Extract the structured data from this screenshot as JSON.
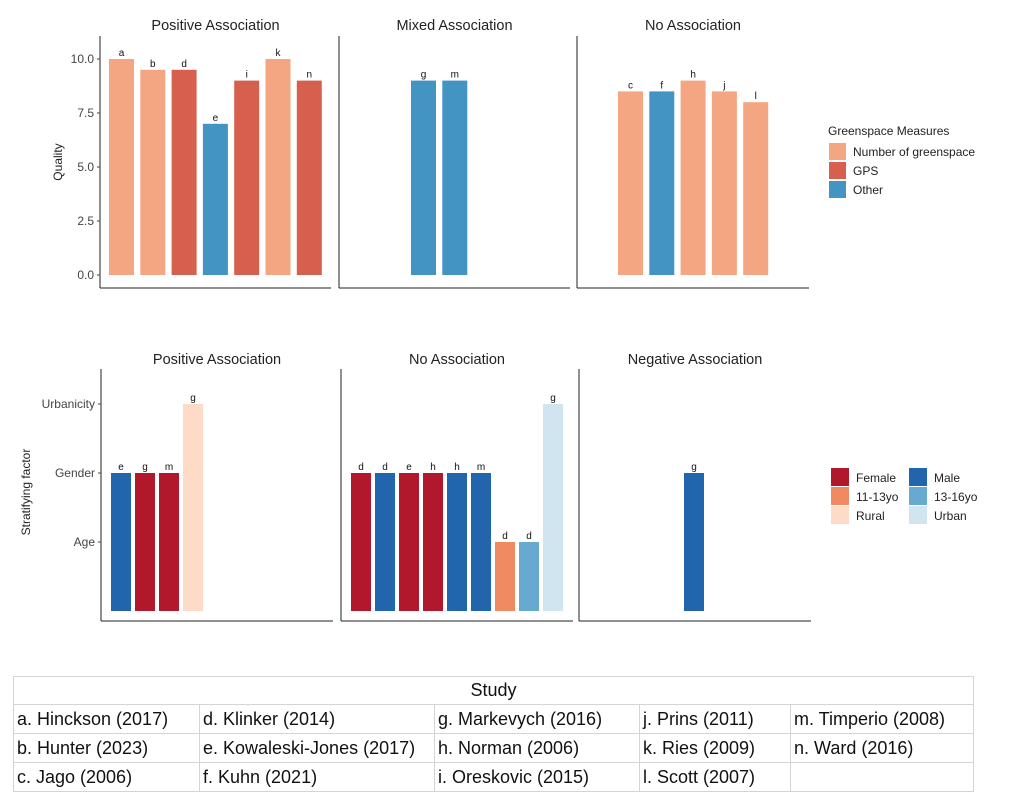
{
  "chart_data": [
    {
      "type": "bar",
      "panels": [
        {
          "title": "Positive Association",
          "bars": [
            {
              "label": "a",
              "value": 10.0,
              "measure": "Number of greenspace"
            },
            {
              "label": "b",
              "value": 9.5,
              "measure": "Number of greenspace"
            },
            {
              "label": "d",
              "value": 9.5,
              "measure": "GPS"
            },
            {
              "label": "e",
              "value": 7.0,
              "measure": "Other"
            },
            {
              "label": "i",
              "value": 9.0,
              "measure": "GPS"
            },
            {
              "label": "k",
              "value": 10.0,
              "measure": "Number of greenspace"
            },
            {
              "label": "n",
              "value": 9.0,
              "measure": "GPS"
            }
          ]
        },
        {
          "title": "Mixed Association",
          "bars": [
            {
              "label": "g",
              "value": 9.0,
              "measure": "Other"
            },
            {
              "label": "m",
              "value": 9.0,
              "measure": "Other"
            }
          ]
        },
        {
          "title": "No Association",
          "bars": [
            {
              "label": "c",
              "value": 8.5,
              "measure": "Number of greenspace"
            },
            {
              "label": "f",
              "value": 8.5,
              "measure": "Other"
            },
            {
              "label": "h",
              "value": 9.0,
              "measure": "Number of greenspace"
            },
            {
              "label": "j",
              "value": 8.5,
              "measure": "Number of greenspace"
            },
            {
              "label": "l",
              "value": 8.0,
              "measure": "Number of greenspace"
            }
          ]
        }
      ],
      "ylabel": "Quality",
      "yticks": [
        "0.0",
        "2.5",
        "5.0",
        "7.5",
        "10.0"
      ],
      "ylim": [
        0,
        10.6
      ],
      "legend": {
        "title": "Greenspace Measures",
        "position": "right",
        "items": [
          {
            "name": "Number of greenspace",
            "color": "#f4a582"
          },
          {
            "name": "GPS",
            "color": "#d6604d"
          },
          {
            "name": "Other",
            "color": "#4393c3"
          }
        ]
      }
    },
    {
      "type": "bar",
      "panels": [
        {
          "title": "Positive Association",
          "bars": [
            {
              "label": "e",
              "value": 2,
              "group": "Male"
            },
            {
              "label": "g",
              "value": 2,
              "group": "Female"
            },
            {
              "label": "m",
              "value": 2,
              "group": "Female"
            },
            {
              "label": "g",
              "value": 3,
              "group": "Rural"
            }
          ]
        },
        {
          "title": "No Association",
          "bars": [
            {
              "label": "d",
              "value": 2,
              "group": "Female"
            },
            {
              "label": "d",
              "value": 2,
              "group": "Male"
            },
            {
              "label": "e",
              "value": 2,
              "group": "Female"
            },
            {
              "label": "h",
              "value": 2,
              "group": "Female"
            },
            {
              "label": "h",
              "value": 2,
              "group": "Male"
            },
            {
              "label": "m",
              "value": 2,
              "group": "Male"
            },
            {
              "label": "d",
              "value": 1,
              "group": "11-13yo"
            },
            {
              "label": "d",
              "value": 1,
              "group": "13-16yo"
            },
            {
              "label": "g",
              "value": 3,
              "group": "Urban"
            }
          ]
        },
        {
          "title": "Negative Association",
          "bars": [
            {
              "label": "g",
              "value": 2,
              "group": "Male"
            }
          ]
        }
      ],
      "ylabel": "Stratifying factor",
      "yticks": [
        "Age",
        "Gender",
        "Urbanicity"
      ],
      "ylim": [
        0,
        3.2
      ],
      "legend": {
        "position": "right",
        "items": [
          {
            "name": "Female",
            "color": "#b2182b"
          },
          {
            "name": "Male",
            "color": "#2166ac"
          },
          {
            "name": "11-13yo",
            "color": "#ef8a62"
          },
          {
            "name": "13-16yo",
            "color": "#67a9cf"
          },
          {
            "name": "Rural",
            "color": "#fddbc7"
          },
          {
            "name": "Urban",
            "color": "#d1e5f0"
          }
        ]
      }
    }
  ],
  "studies": {
    "header": "Study",
    "rows": [
      [
        "a. Hinckson (2017)",
        "d. Klinker (2014)",
        "g. Markevych (2016)",
        "j.  Prins (2011)",
        "m. Timperio (2008)"
      ],
      [
        "b. Hunter (2023)",
        "e. Kowaleski-Jones (2017)",
        "h. Norman (2006)",
        "k. Ries (2009)",
        "n.  Ward (2016)"
      ],
      [
        "c. Jago (2006)",
        "f.  Kuhn (2021)",
        "i.  Oreskovic (2015)",
        "l.  Scott (2007)",
        ""
      ]
    ]
  }
}
